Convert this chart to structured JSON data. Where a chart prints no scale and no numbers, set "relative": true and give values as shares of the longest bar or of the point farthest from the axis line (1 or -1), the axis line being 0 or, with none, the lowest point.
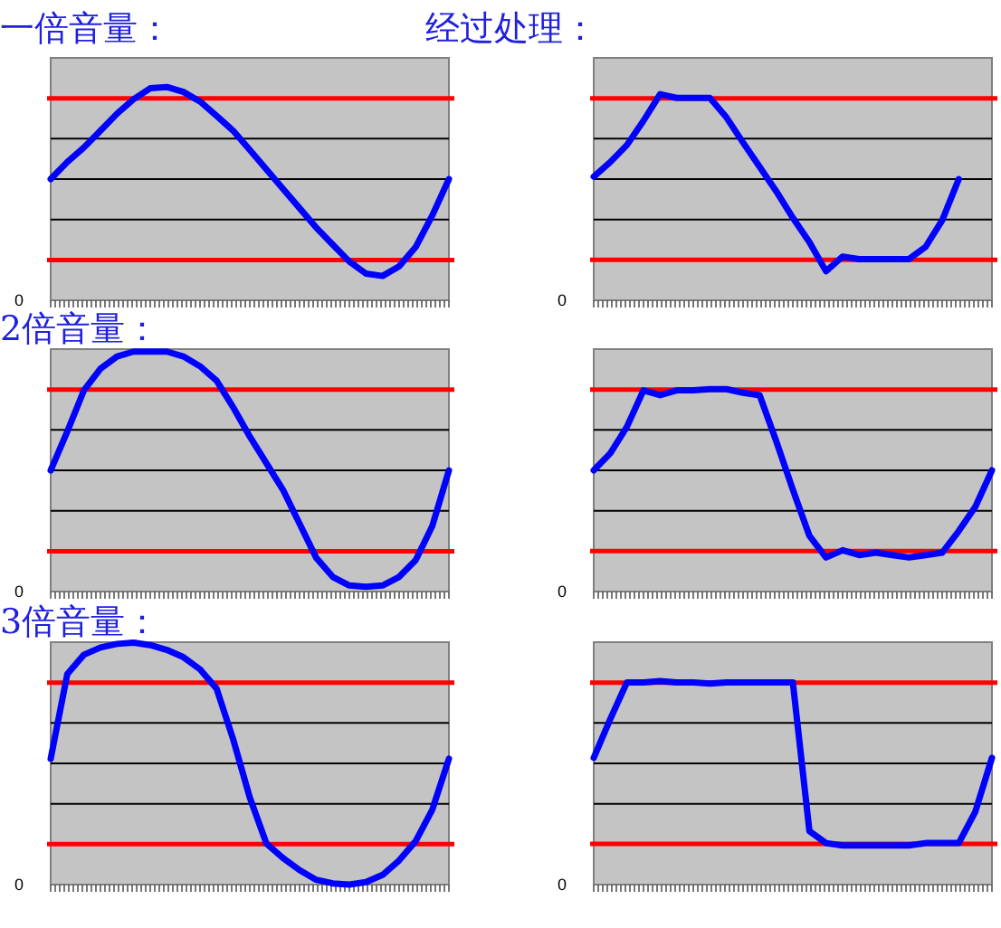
{
  "chart_data": [
    {
      "type": "line",
      "title": "一倍音量：",
      "relative": true,
      "grid": "y",
      "annotations": [
        "0"
      ],
      "categories": [
        null,
        null,
        null,
        null,
        null,
        null,
        null,
        null,
        null,
        null,
        null,
        null,
        null,
        null,
        null,
        null,
        null,
        null,
        null,
        null,
        null,
        null,
        null,
        null,
        null
      ],
      "series": [
        {
          "color": "#0000ff",
          "values": [
            0.568,
            0.648,
            0.716,
            0.795,
            0.875,
            0.943,
            0.994,
            1,
            0.977,
            0.932,
            0.864,
            0.795,
            0.705,
            0.614,
            0.523,
            0.432,
            0.341,
            0.261,
            0.182,
            0.125,
            0.114,
            0.159,
            0.25,
            0.398,
            0.568
          ]
        }
      ],
      "ref_lines": [
        {
          "axis": "y",
          "value": 0.947,
          "color": "#ff0000"
        },
        {
          "axis": "y",
          "value": 0.189,
          "color": "#ff0000"
        }
      ]
    },
    {
      "type": "line",
      "title": "经过处理：",
      "relative": true,
      "grid": "y",
      "annotations": [
        "0"
      ],
      "categories": [
        null,
        null,
        null,
        null,
        null,
        null,
        null,
        null,
        null,
        null,
        null,
        null,
        null,
        null,
        null,
        null,
        null,
        null,
        null,
        null,
        null,
        null,
        null,
        null,
        null
      ],
      "series": [
        {
          "color": "#0000ff",
          "values": [
            0.6,
            0.671,
            0.753,
            0.871,
            1,
            0.982,
            0.982,
            0.982,
            0.887,
            0.765,
            0.647,
            0.529,
            0.4,
            0.282,
            0.141,
            0.212,
            0.2,
            0.2,
            0.2,
            0.2,
            0.259,
            0.388,
            0.588,
            null,
            null
          ]
        }
      ],
      "ref_lines": [
        {
          "axis": "y",
          "value": 0.98,
          "color": "#ff0000"
        },
        {
          "axis": "y",
          "value": 0.196,
          "color": "#ff0000"
        }
      ]
    },
    {
      "type": "line",
      "title": "2倍音量：",
      "relative": true,
      "grid": "y",
      "annotations": [
        "0"
      ],
      "categories": [
        null,
        null,
        null,
        null,
        null,
        null,
        null,
        null,
        null,
        null,
        null,
        null,
        null,
        null,
        null,
        null,
        null,
        null,
        null,
        null,
        null,
        null,
        null,
        null,
        null
      ],
      "series": [
        {
          "color": "#0000ff",
          "values": [
            0.505,
            0.667,
            0.838,
            0.929,
            0.98,
            1,
            1,
            1,
            0.98,
            0.939,
            0.879,
            0.768,
            0.646,
            0.535,
            0.424,
            0.283,
            0.141,
            0.061,
            0.025,
            0.02,
            0.025,
            0.061,
            0.131,
            0.273,
            0.505
          ]
        }
      ],
      "ref_lines": [
        {
          "axis": "y",
          "value": 0.842,
          "color": "#ff0000"
        },
        {
          "axis": "y",
          "value": 0.168,
          "color": "#ff0000"
        }
      ]
    },
    {
      "type": "line",
      "relative": true,
      "grid": "y",
      "annotations": [
        "0"
      ],
      "categories": [
        null,
        null,
        null,
        null,
        null,
        null,
        null,
        null,
        null,
        null,
        null,
        null,
        null,
        null,
        null,
        null,
        null,
        null,
        null,
        null,
        null,
        null,
        null,
        null,
        null
      ],
      "series": [
        {
          "color": "#0000ff",
          "values": [
            0.599,
            0.683,
            0.814,
            0.994,
            0.97,
            0.994,
            0.994,
            1,
            1,
            0.982,
            0.97,
            0.743,
            0.503,
            0.275,
            0.168,
            0.204,
            0.18,
            0.192,
            0.18,
            0.168,
            0.18,
            0.192,
            0.299,
            0.419,
            0.599
          ]
        }
      ],
      "ref_lines": [
        {
          "axis": "y",
          "value": 0.998,
          "color": "#ff0000"
        },
        {
          "axis": "y",
          "value": 0.2,
          "color": "#ff0000"
        }
      ]
    },
    {
      "type": "line",
      "title": "3倍音量：",
      "relative": true,
      "grid": "y",
      "annotations": [
        "0"
      ],
      "categories": [
        null,
        null,
        null,
        null,
        null,
        null,
        null,
        null,
        null,
        null,
        null,
        null,
        null,
        null,
        null,
        null,
        null,
        null,
        null,
        null,
        null,
        null,
        null,
        null,
        null
      ],
      "series": [
        {
          "color": "#0000ff",
          "values": [
            0.52,
            0.87,
            0.95,
            0.98,
            0.995,
            1,
            0.99,
            0.97,
            0.94,
            0.89,
            0.81,
            0.6,
            0.36,
            0.17,
            0.11,
            0.06,
            0.02,
            0.005,
            0,
            0.01,
            0.04,
            0.1,
            0.18,
            0.31,
            0.52
          ]
        }
      ],
      "ref_lines": [
        {
          "axis": "y",
          "value": 0.835,
          "color": "#ff0000"
        },
        {
          "axis": "y",
          "value": 0.167,
          "color": "#ff0000"
        }
      ]
    },
    {
      "type": "line",
      "relative": true,
      "grid": "y",
      "annotations": [
        "0"
      ],
      "categories": [
        null,
        null,
        null,
        null,
        null,
        null,
        null,
        null,
        null,
        null,
        null,
        null,
        null,
        null,
        null,
        null,
        null,
        null,
        null,
        null,
        null,
        null,
        null,
        null,
        null
      ],
      "series": [
        {
          "color": "#0000ff",
          "values": [
            0.623,
            0.814,
            0.994,
            0.994,
            1,
            0.994,
            0.994,
            0.988,
            0.994,
            0.994,
            0.994,
            0.994,
            0.994,
            0.263,
            0.204,
            0.192,
            0.192,
            0.192,
            0.192,
            0.192,
            0.204,
            0.204,
            0.204,
            0.359,
            0.623
          ]
        }
      ],
      "ref_lines": [
        {
          "axis": "y",
          "value": 0.993,
          "color": "#ff0000"
        },
        {
          "axis": "y",
          "value": 0.2,
          "color": "#ff0000"
        }
      ]
    }
  ]
}
